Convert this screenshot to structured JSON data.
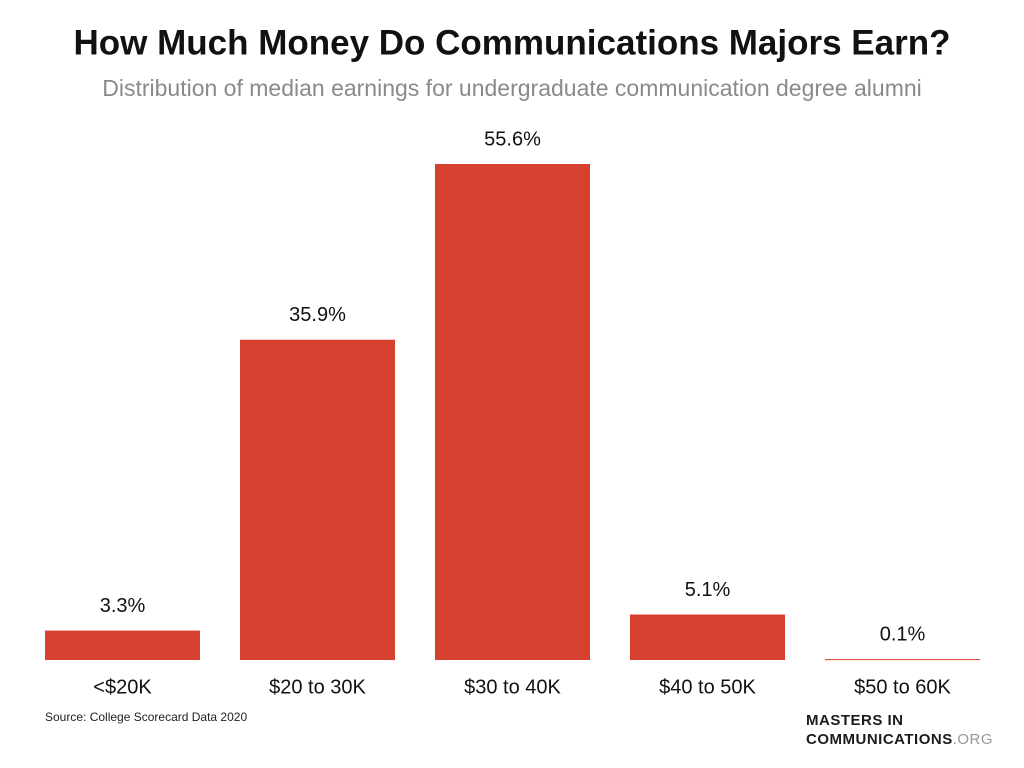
{
  "chart_data": {
    "type": "bar",
    "title": "How Much Money Do Communications Majors Earn?",
    "subtitle": "Distribution of median earnings for undergraduate communication degree alumni",
    "categories": [
      "<$20K",
      "$20 to 30K",
      "$30 to 40K",
      "$40 to 50K",
      "$50 to 60K"
    ],
    "values": [
      3.3,
      35.9,
      55.6,
      5.1,
      0.1
    ],
    "value_labels": [
      "3.3%",
      "35.9%",
      "55.6%",
      "5.1%",
      "0.1%"
    ],
    "color": "#d6402f",
    "source": "Source: College Scorecard Data 2020"
  },
  "logo": {
    "line1": "MASTERS IN",
    "line2": "COMMUNICATIONS",
    "suffix": ".ORG"
  }
}
